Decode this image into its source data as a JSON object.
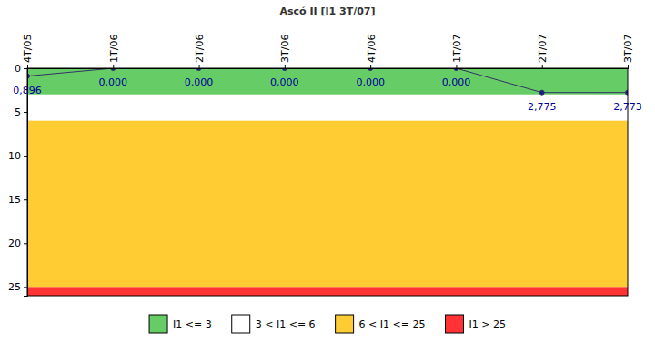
{
  "chart_data": {
    "type": "line",
    "title": "Ascó II [I1 3T/07]",
    "categories": [
      "4T/05",
      "1T/06",
      "2T/06",
      "3T/06",
      "4T/06",
      "1T/07",
      "2T/07",
      "3T/07"
    ],
    "values": [
      0.896,
      0,
      0,
      0,
      0,
      0,
      2.775,
      2.773
    ],
    "value_labels": [
      "0,896",
      "0,000",
      "0,000",
      "0,000",
      "0,000",
      "0,000",
      "2,775",
      "2,773"
    ],
    "data_labels": true,
    "color": "#333366",
    "marker": "circle",
    "ylim": [
      0,
      26
    ],
    "yticks": [
      0,
      5,
      10,
      15,
      20,
      25
    ],
    "bands": [
      {
        "name": "I1 <= 3",
        "from": 0,
        "to": 3,
        "color": "#66cc66"
      },
      {
        "name": "3 < I1 <= 6",
        "from": 3,
        "to": 6,
        "color": "#ffffff"
      },
      {
        "name": "6 < I1 <= 25",
        "from": 6,
        "to": 25,
        "color": "#ffcc33"
      },
      {
        "name": "I1 > 25",
        "from": 25,
        "to": 26,
        "color": "#ff3333"
      }
    ],
    "legend": "bottom"
  }
}
